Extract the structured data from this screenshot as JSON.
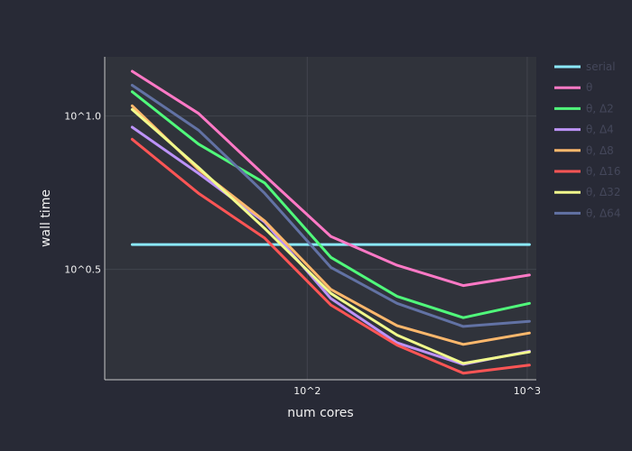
{
  "chart_data": {
    "type": "line",
    "xlabel": "num cores",
    "ylabel": "wall time",
    "x_scale": "log",
    "y_scale": "log",
    "xlim": [
      12,
      1100
    ],
    "ylim": [
      1.38,
      15.6
    ],
    "x_ticks": [
      {
        "value": 100,
        "label": "10^2"
      },
      {
        "value": 1000,
        "label": "10^3"
      }
    ],
    "y_ticks": [
      {
        "value": 3.1623,
        "label": "10^0.5"
      },
      {
        "value": 10,
        "label": "10^1.0"
      }
    ],
    "grid": true,
    "legend_position": "right",
    "x": [
      16,
      32,
      64,
      128,
      256,
      512,
      1024
    ],
    "series": [
      {
        "name": "serial",
        "color": "#8be9fd",
        "values": [
          3.81,
          3.81,
          3.81,
          3.81,
          3.81,
          3.81,
          3.81
        ]
      },
      {
        "name": "θ",
        "color": "#ff79c6",
        "values": [
          14.0,
          10.2,
          6.4,
          4.05,
          3.26,
          2.8,
          3.03
        ]
      },
      {
        "name": "θ, Δ2",
        "color": "#50fa7b",
        "values": [
          12.0,
          8.1,
          6.05,
          3.46,
          2.58,
          2.2,
          2.45
        ]
      },
      {
        "name": "θ, Δ4",
        "color": "#bd93f9",
        "values": [
          9.2,
          6.5,
          4.51,
          2.54,
          1.82,
          1.55,
          1.71
        ]
      },
      {
        "name": "θ, Δ8",
        "color": "#ffb86c",
        "values": [
          10.8,
          6.7,
          4.55,
          2.72,
          2.07,
          1.8,
          1.96
        ]
      },
      {
        "name": "θ, Δ16",
        "color": "#ff5555",
        "values": [
          8.4,
          5.6,
          4.0,
          2.42,
          1.79,
          1.45,
          1.54
        ]
      },
      {
        "name": "θ, Δ32",
        "color": "#f1fa8c",
        "values": [
          10.5,
          6.8,
          4.3,
          2.64,
          1.93,
          1.56,
          1.7
        ]
      },
      {
        "name": "θ, Δ64",
        "color": "#6272a4",
        "values": [
          12.6,
          9.0,
          5.6,
          3.21,
          2.45,
          2.06,
          2.14
        ]
      }
    ]
  }
}
